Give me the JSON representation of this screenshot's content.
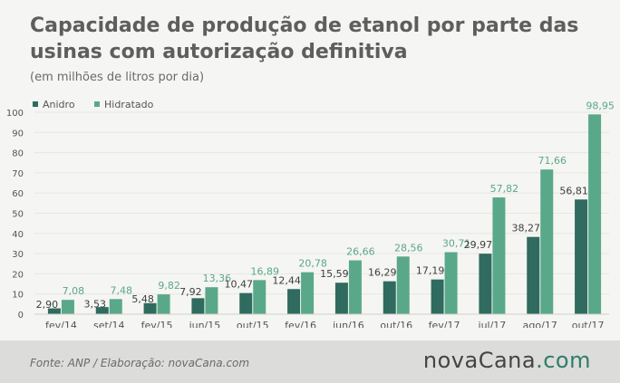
{
  "header": {
    "title": "Capacidade de produção de etanol por parte das usinas com autorização definitiva",
    "subtitle": "(em milhões de litros por dia)"
  },
  "footer": {
    "source": "Fonte: ANP / Elaboração: novaCana.com",
    "logo_main": "novaCana",
    "logo_dot": ".",
    "logo_suffix": "com"
  },
  "colors": {
    "anidro": "#2f6b5e",
    "hidratado": "#5aa88a",
    "axis_text": "#555555",
    "grid": "#e6e6e3"
  },
  "chart_data": {
    "type": "bar",
    "categories": [
      "fev/14",
      "set/14",
      "fev/15",
      "jun/15",
      "out/15",
      "fev/16",
      "jun/16",
      "out/16",
      "fev/17",
      "jul/17",
      "ago/17",
      "out/17"
    ],
    "series": [
      {
        "name": "Anidro",
        "values": [
          2.9,
          3.53,
          5.48,
          7.92,
          10.47,
          12.44,
          15.59,
          16.29,
          17.19,
          29.97,
          38.27,
          56.81
        ],
        "labels": [
          "2,90",
          "3,53",
          "5,48",
          "7,92",
          "10,47",
          "12,44",
          "15,59",
          "16,29",
          "17,19",
          "29,97",
          "38,27",
          "56,81"
        ]
      },
      {
        "name": "Hidratado",
        "values": [
          7.08,
          7.48,
          9.82,
          13.36,
          16.89,
          20.78,
          26.66,
          28.56,
          30.71,
          57.82,
          71.66,
          98.95
        ],
        "labels": [
          "7,08",
          "7,48",
          "9,82",
          "13,36",
          "16,89",
          "20,78",
          "26,66",
          "28,56",
          "30,71",
          "57,82",
          "71,66",
          "98,95"
        ]
      }
    ],
    "yticks": [
      "0",
      "10",
      "20",
      "30",
      "40",
      "50",
      "60",
      "70",
      "80",
      "90",
      "100"
    ],
    "ylim": [
      0,
      100
    ],
    "grid": true,
    "legend_position": "top-left"
  }
}
